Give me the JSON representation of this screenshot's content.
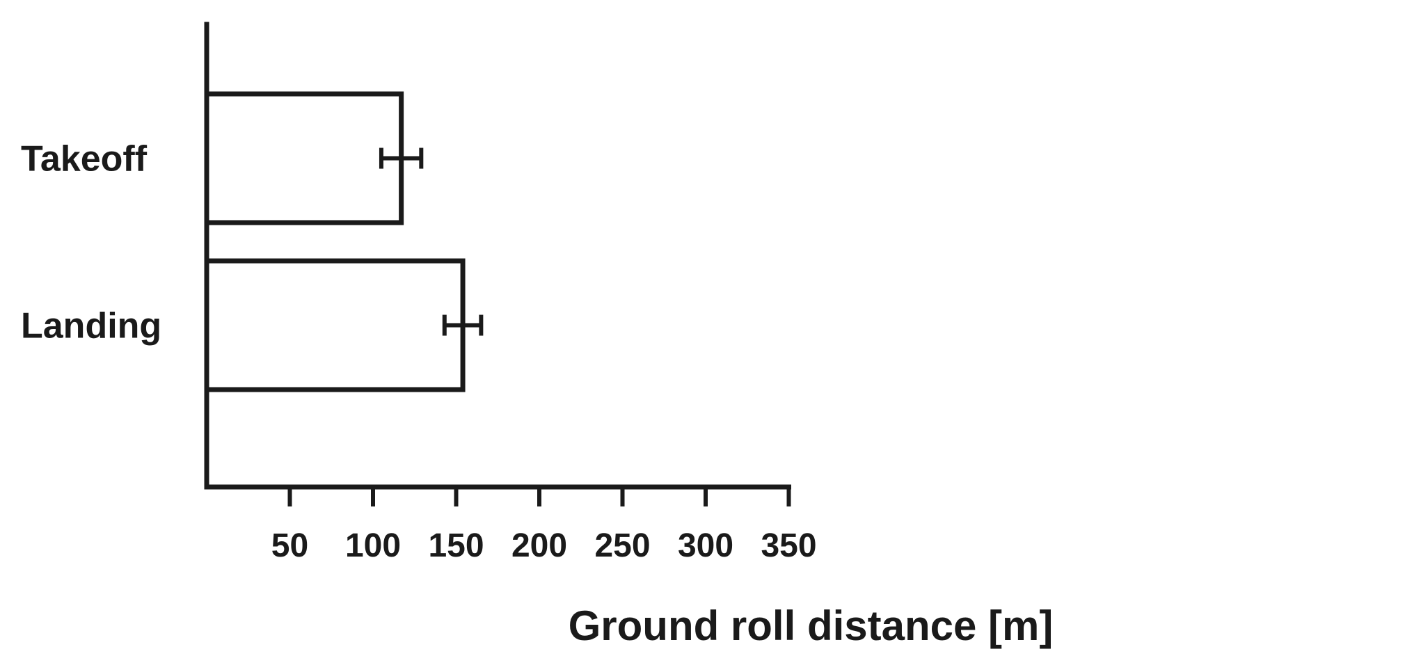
{
  "chart_data": {
    "type": "bar",
    "orientation": "horizontal",
    "categories": [
      "Takeoff",
      "Landing"
    ],
    "values": [
      117,
      154
    ],
    "error": [
      12,
      11
    ],
    "xlabel": "Ground roll distance [m]",
    "ylabel": "",
    "xlim": [
      0,
      350
    ],
    "xticks": [
      50,
      100,
      150,
      200,
      250,
      300,
      350
    ],
    "grid": false,
    "colors": {
      "bar_fill": "#ffffff",
      "stroke": "#1a1a1a"
    }
  }
}
